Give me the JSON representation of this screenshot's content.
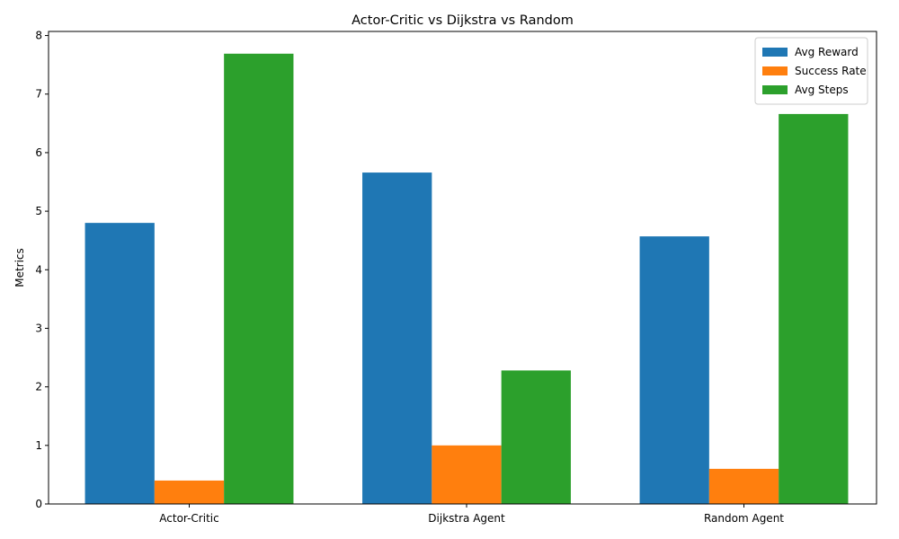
{
  "chart_data": {
    "type": "bar",
    "title": "Actor-Critic vs Dijkstra vs Random",
    "xlabel": "",
    "ylabel": "Metrics",
    "categories": [
      "Actor-Critic",
      "Dijkstra Agent",
      "Random Agent"
    ],
    "series": [
      {
        "name": "Avg Reward",
        "values": [
          4.8,
          5.66,
          4.57
        ],
        "color": "#1f77b4"
      },
      {
        "name": "Success Rate",
        "values": [
          0.4,
          1.0,
          0.6
        ],
        "color": "#ff7f0e"
      },
      {
        "name": "Avg Steps",
        "values": [
          7.69,
          2.28,
          6.66
        ],
        "color": "#2ca02c"
      }
    ],
    "ylim": [
      0,
      8.07
    ],
    "yticks": [
      0,
      1,
      2,
      3,
      4,
      5,
      6,
      7,
      8
    ],
    "grid": false,
    "legend_position": "top-right"
  }
}
